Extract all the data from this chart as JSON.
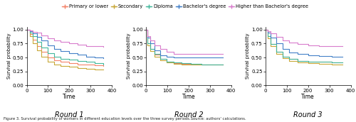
{
  "legend_labels": [
    "Primary or lower",
    "Secondary",
    "Diploma",
    "Bachelor's degree",
    "Higher than Bachelor's degree"
  ],
  "legend_colors": [
    "#f4846a",
    "#c8a838",
    "#44b89c",
    "#4480c8",
    "#d87ccc"
  ],
  "round_labels": [
    "Round 1",
    "Round 2",
    "Round 3"
  ],
  "xlim": [
    0,
    400
  ],
  "ylim": [
    0.0,
    1.05
  ],
  "yticks": [
    0.0,
    0.25,
    0.5,
    0.75,
    1.0
  ],
  "xticks": [
    0,
    100,
    200,
    300,
    400
  ],
  "caption": "Figure 3. Survival probability of workers in different education levels over the three survey periods.Source: authors' calculations.",
  "rounds": {
    "round1": {
      "Primary or lower": {
        "x": [
          0,
          15,
          30,
          50,
          70,
          100,
          130,
          160,
          200,
          240,
          280,
          320,
          360
        ],
        "y": [
          1.0,
          0.92,
          0.82,
          0.7,
          0.6,
          0.5,
          0.45,
          0.42,
          0.4,
          0.38,
          0.37,
          0.36,
          0.35
        ]
      },
      "Secondary": {
        "x": [
          0,
          15,
          30,
          50,
          70,
          100,
          130,
          160,
          200,
          240,
          280,
          320,
          360
        ],
        "y": [
          1.0,
          0.88,
          0.76,
          0.63,
          0.52,
          0.43,
          0.38,
          0.35,
          0.33,
          0.31,
          0.3,
          0.29,
          0.29
        ]
      },
      "Diploma": {
        "x": [
          0,
          15,
          30,
          50,
          70,
          100,
          130,
          160,
          200,
          240,
          280,
          320,
          360
        ],
        "y": [
          1.0,
          0.95,
          0.88,
          0.78,
          0.68,
          0.58,
          0.52,
          0.48,
          0.46,
          0.44,
          0.42,
          0.4,
          0.38
        ]
      },
      "Bachelor's degree": {
        "x": [
          0,
          15,
          30,
          50,
          70,
          100,
          130,
          160,
          200,
          240,
          280,
          320,
          360
        ],
        "y": [
          1.0,
          0.97,
          0.93,
          0.87,
          0.8,
          0.72,
          0.66,
          0.62,
          0.58,
          0.55,
          0.52,
          0.5,
          0.49
        ]
      },
      "Higher than Bachelor's degree": {
        "x": [
          0,
          15,
          30,
          50,
          70,
          100,
          130,
          160,
          200,
          240,
          280,
          320,
          360
        ],
        "y": [
          1.0,
          0.98,
          0.96,
          0.94,
          0.9,
          0.85,
          0.81,
          0.78,
          0.75,
          0.73,
          0.71,
          0.7,
          0.69
        ]
      }
    },
    "round2": {
      "Primary or lower": {
        "x": [
          0,
          5,
          20,
          40,
          65,
          95,
          130,
          165,
          210,
          260,
          310,
          360
        ],
        "y": [
          1.0,
          0.75,
          0.65,
          0.55,
          0.47,
          0.42,
          0.4,
          0.39,
          0.38,
          0.38,
          0.37,
          0.37
        ]
      },
      "Secondary": {
        "x": [
          0,
          5,
          20,
          40,
          65,
          95,
          130,
          165,
          210,
          260,
          310,
          360
        ],
        "y": [
          1.0,
          0.72,
          0.62,
          0.52,
          0.45,
          0.41,
          0.39,
          0.38,
          0.38,
          0.37,
          0.37,
          0.37
        ]
      },
      "Diploma": {
        "x": [
          0,
          5,
          20,
          40,
          65,
          95,
          130,
          165,
          210,
          260,
          310,
          360
        ],
        "y": [
          1.0,
          0.76,
          0.66,
          0.56,
          0.48,
          0.43,
          0.41,
          0.4,
          0.39,
          0.38,
          0.38,
          0.38
        ]
      },
      "Bachelor's degree": {
        "x": [
          0,
          5,
          20,
          40,
          65,
          95,
          130,
          165,
          210,
          260,
          310,
          360
        ],
        "y": [
          1.0,
          0.86,
          0.75,
          0.63,
          0.54,
          0.51,
          0.5,
          0.5,
          0.5,
          0.5,
          0.5,
          0.5
        ]
      },
      "Higher than Bachelor's degree": {
        "x": [
          0,
          5,
          20,
          40,
          65,
          95,
          130,
          165,
          210,
          260,
          310,
          360
        ],
        "y": [
          1.0,
          0.88,
          0.8,
          0.72,
          0.65,
          0.6,
          0.57,
          0.56,
          0.56,
          0.56,
          0.56,
          0.56
        ]
      }
    },
    "round3": {
      "Primary or lower": {
        "x": [
          0,
          10,
          25,
          50,
          80,
          110,
          150,
          200,
          250,
          310,
          360
        ],
        "y": [
          1.0,
          0.88,
          0.74,
          0.6,
          0.52,
          0.47,
          0.44,
          0.43,
          0.42,
          0.41,
          0.41
        ]
      },
      "Secondary": {
        "x": [
          0,
          10,
          25,
          50,
          80,
          110,
          150,
          200,
          250,
          310,
          360
        ],
        "y": [
          1.0,
          0.84,
          0.7,
          0.57,
          0.49,
          0.44,
          0.41,
          0.4,
          0.39,
          0.38,
          0.38
        ]
      },
      "Diploma": {
        "x": [
          0,
          10,
          25,
          50,
          80,
          110,
          150,
          200,
          250,
          310,
          360
        ],
        "y": [
          1.0,
          0.88,
          0.74,
          0.6,
          0.52,
          0.47,
          0.44,
          0.43,
          0.42,
          0.41,
          0.41
        ]
      },
      "Bachelor's degree": {
        "x": [
          0,
          10,
          25,
          50,
          80,
          110,
          150,
          200,
          250,
          310,
          360
        ],
        "y": [
          1.0,
          0.94,
          0.86,
          0.75,
          0.65,
          0.59,
          0.56,
          0.54,
          0.53,
          0.52,
          0.52
        ]
      },
      "Higher than Bachelor's degree": {
        "x": [
          0,
          10,
          25,
          50,
          80,
          110,
          150,
          200,
          250,
          310,
          360
        ],
        "y": [
          1.0,
          0.97,
          0.93,
          0.87,
          0.81,
          0.77,
          0.74,
          0.72,
          0.71,
          0.7,
          0.7
        ]
      }
    }
  }
}
